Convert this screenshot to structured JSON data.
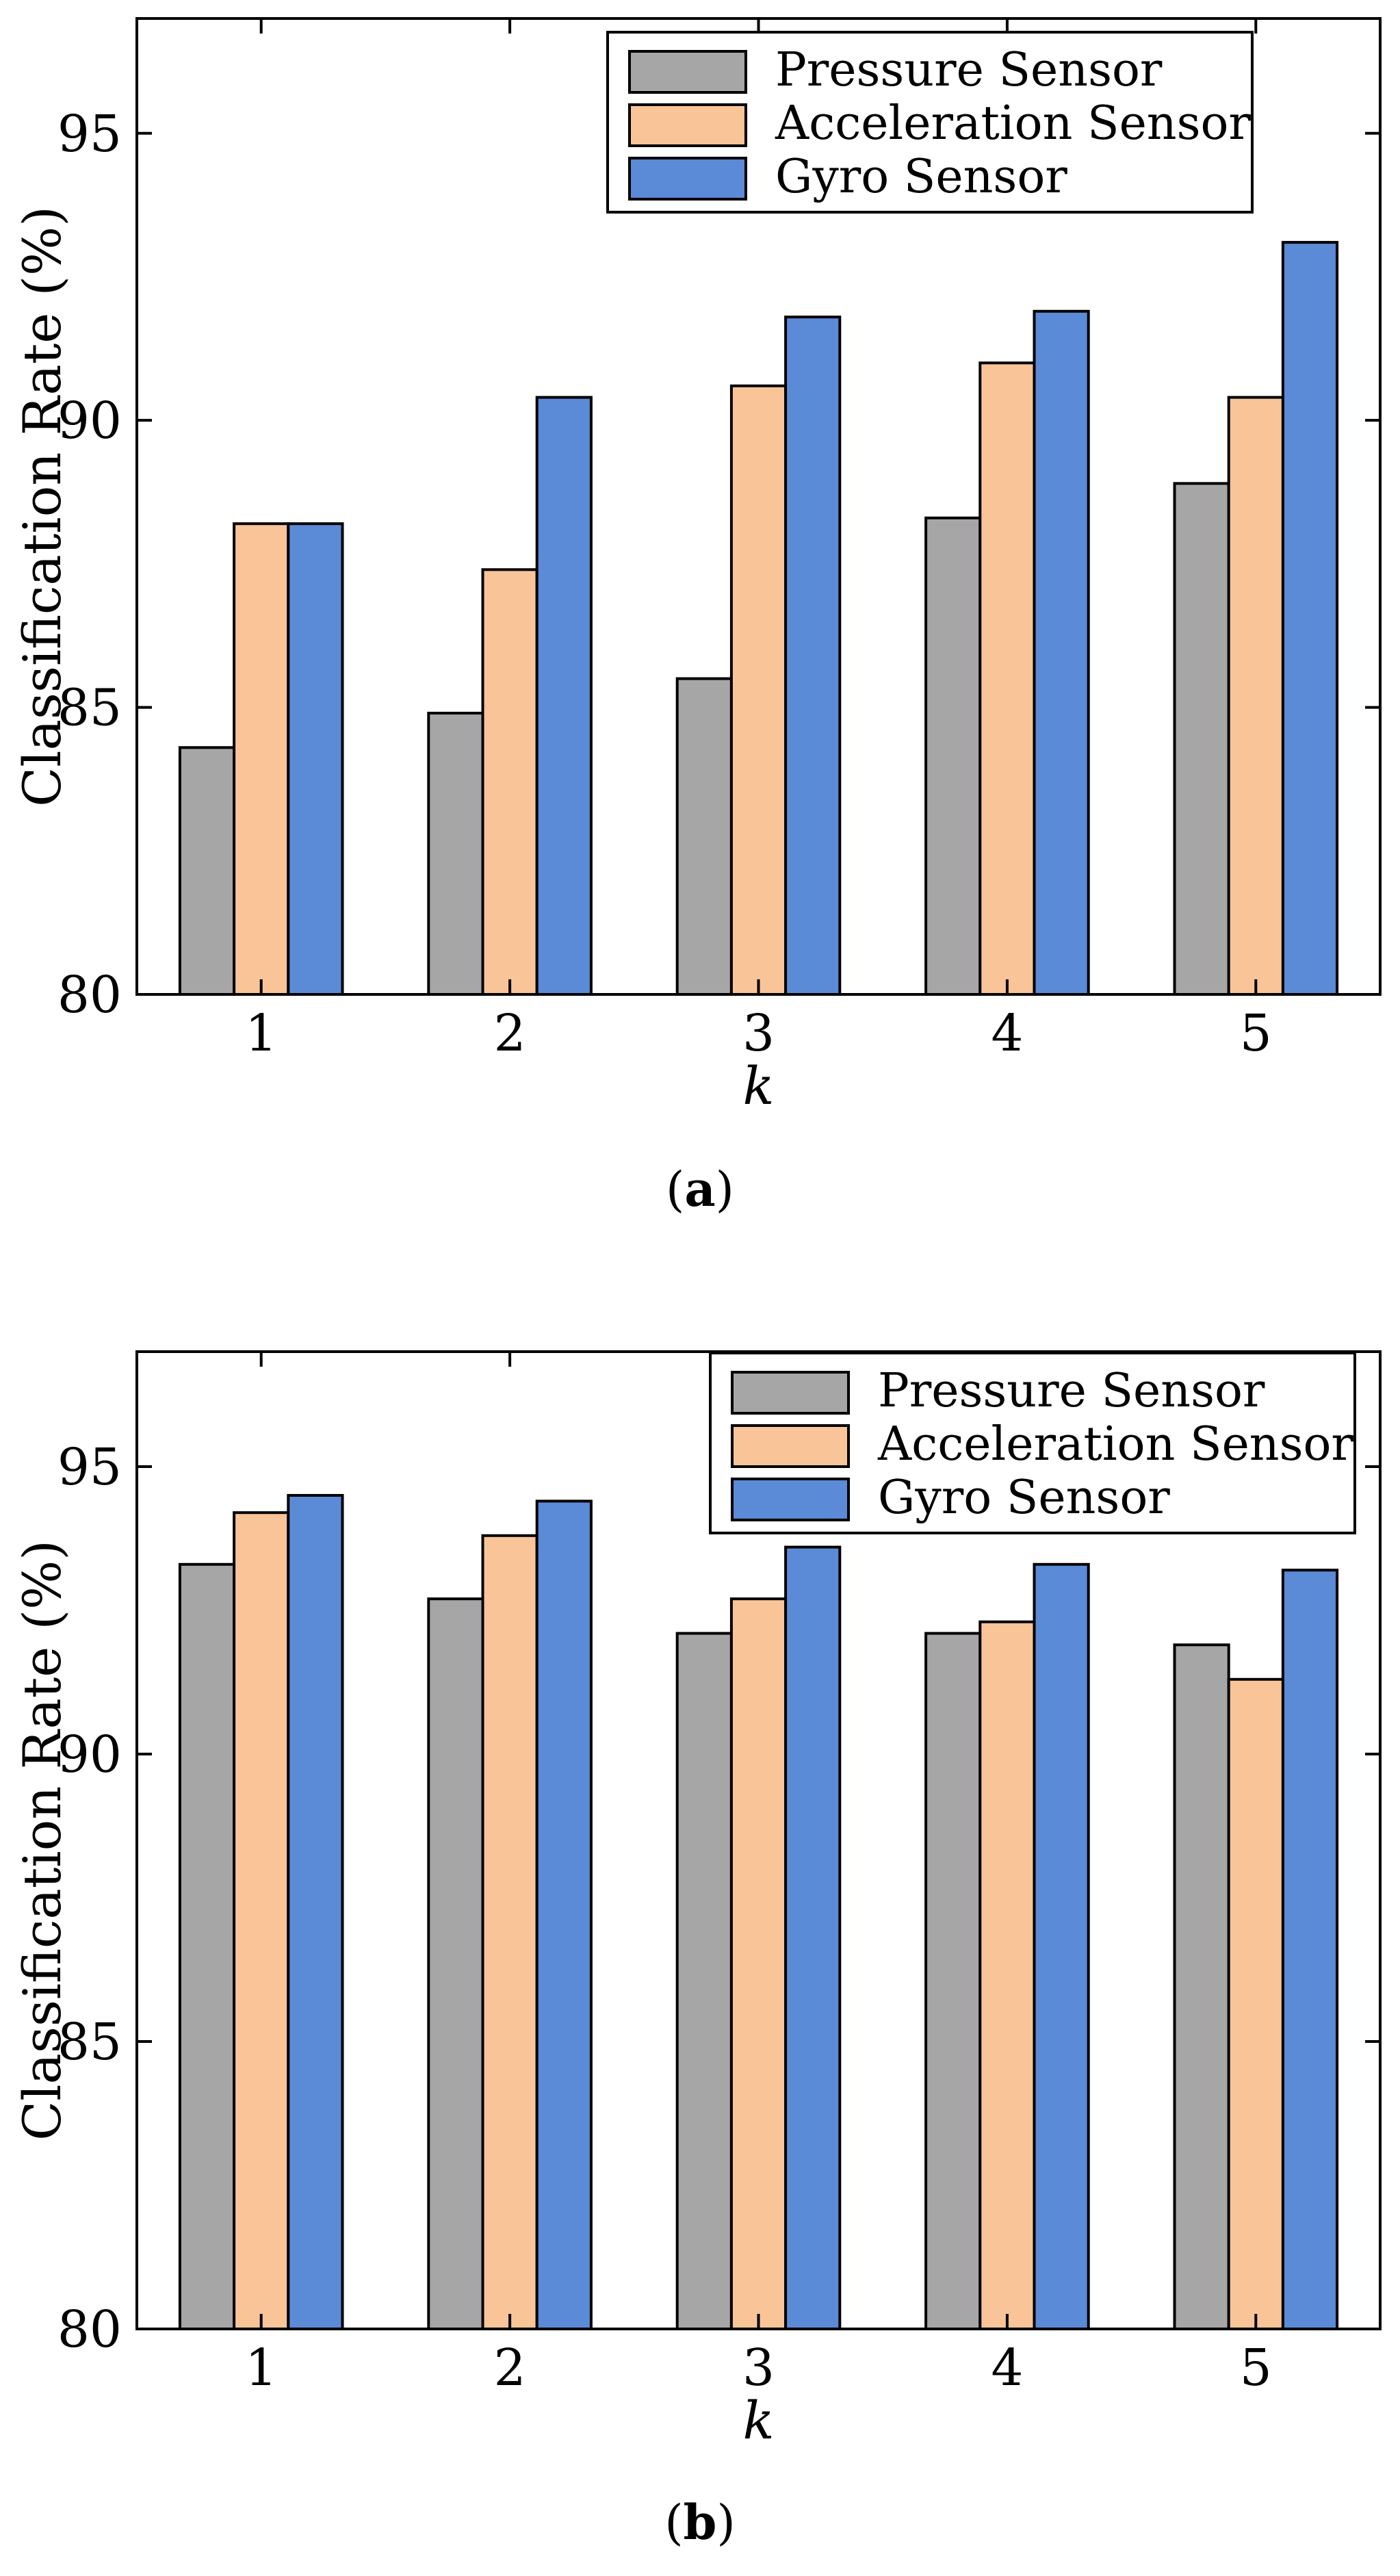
{
  "figure": {
    "series_style": [
      {
        "name": "Pressure Sensor",
        "color": "#a6a6a6"
      },
      {
        "name": "Acceleration Sensor",
        "color": "#f8c498"
      },
      {
        "name": "Gyro Sensor",
        "color": "#5b8ad6"
      }
    ]
  },
  "chart_data": [
    {
      "type": "bar",
      "panel": "a",
      "caption_letter": "a",
      "caption_open": "(",
      "caption_close": ")",
      "title": "",
      "xlabel": "k",
      "ylabel": "Classification Rate (%)",
      "categories": [
        "1",
        "2",
        "3",
        "4",
        "5"
      ],
      "ylim": [
        80,
        97
      ],
      "yticks": [
        80,
        85,
        90,
        95
      ],
      "legend_position": "top-right",
      "series": [
        {
          "name": "Pressure Sensor",
          "values": [
            84.3,
            84.9,
            85.5,
            88.3,
            88.9
          ]
        },
        {
          "name": "Acceleration Sensor",
          "values": [
            88.2,
            87.4,
            90.6,
            91.0,
            90.4
          ]
        },
        {
          "name": "Gyro Sensor",
          "values": [
            88.2,
            90.4,
            91.8,
            91.9,
            93.1
          ]
        }
      ]
    },
    {
      "type": "bar",
      "panel": "b",
      "caption_letter": "b",
      "caption_open": "(",
      "caption_close": ")",
      "title": "",
      "xlabel": "k",
      "ylabel": "Classification Rate (%)",
      "categories": [
        "1",
        "2",
        "3",
        "4",
        "5"
      ],
      "ylim": [
        80,
        97
      ],
      "yticks": [
        80,
        85,
        90,
        95
      ],
      "legend_position": "top-right",
      "series": [
        {
          "name": "Pressure Sensor",
          "values": [
            93.3,
            92.7,
            92.1,
            92.1,
            91.9
          ]
        },
        {
          "name": "Acceleration Sensor",
          "values": [
            94.2,
            93.8,
            92.7,
            92.3,
            91.3
          ]
        },
        {
          "name": "Gyro Sensor",
          "values": [
            94.5,
            94.4,
            93.6,
            93.3,
            93.2
          ]
        }
      ]
    }
  ]
}
